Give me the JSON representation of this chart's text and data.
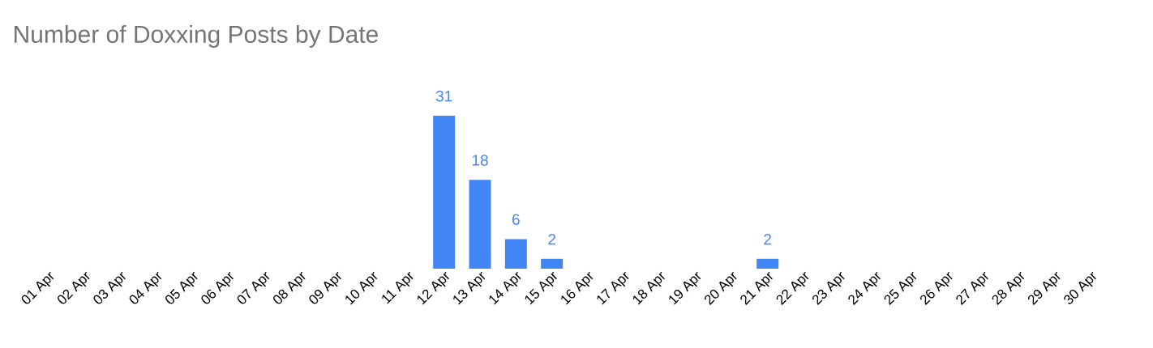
{
  "chart_data": {
    "type": "bar",
    "title": "Number of Doxxing Posts by Date",
    "categories": [
      "01 Apr",
      "02 Apr",
      "03 Apr",
      "04 Apr",
      "05 Apr",
      "06 Apr",
      "07 Apr",
      "08 Apr",
      "09 Apr",
      "10 Apr",
      "11 Apr",
      "12 Apr",
      "13 Apr",
      "14 Apr",
      "15 Apr",
      "16 Apr",
      "17 Apr",
      "18 Apr",
      "19 Apr",
      "20 Apr",
      "21 Apr",
      "22 Apr",
      "23 Apr",
      "24 Apr",
      "25 Apr",
      "26 Apr",
      "27 Apr",
      "28 Apr",
      "29 Apr",
      "30 Apr"
    ],
    "values": [
      0,
      0,
      0,
      0,
      0,
      0,
      0,
      0,
      0,
      0,
      0,
      31,
      18,
      6,
      2,
      0,
      0,
      0,
      0,
      0,
      2,
      0,
      0,
      0,
      0,
      0,
      0,
      0,
      0,
      0
    ],
    "value_labels": [
      null,
      null,
      null,
      null,
      null,
      null,
      null,
      null,
      null,
      null,
      null,
      "31",
      "18",
      "6",
      "2",
      null,
      null,
      null,
      null,
      null,
      "2",
      null,
      null,
      null,
      null,
      null,
      null,
      null,
      null,
      null
    ],
    "color": "#4285f4"
  }
}
